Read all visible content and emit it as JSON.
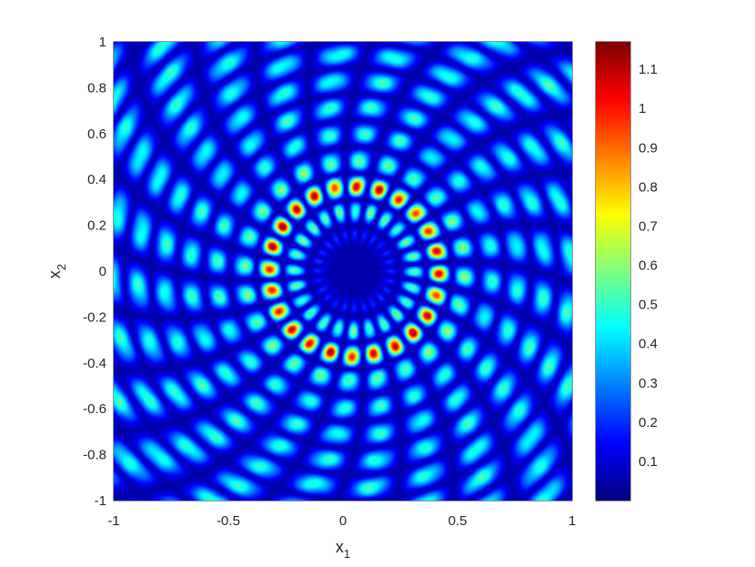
{
  "chart_data": {
    "type": "heatmap",
    "title": "",
    "xlabel": "x",
    "xlabel_sub": "1",
    "ylabel": "x",
    "ylabel_sub": "2",
    "xlim": [
      -1,
      1
    ],
    "ylim": [
      -1,
      1
    ],
    "x_ticks": [
      -1,
      -0.5,
      0,
      0.5,
      1
    ],
    "x_tick_labels": [
      "-1",
      "-0.5",
      "0",
      "0.5",
      "1"
    ],
    "y_ticks": [
      -1,
      -0.8,
      -0.6,
      -0.4,
      -0.2,
      0,
      0.2,
      0.4,
      0.6,
      0.8,
      1
    ],
    "y_tick_labels": [
      "-1",
      "-0.8",
      "-0.6",
      "-0.4",
      "-0.2",
      "0",
      "0.2",
      "0.4",
      "0.6",
      "0.8",
      "1"
    ],
    "colormap": "jet",
    "colorbar": {
      "clim": [
        0,
        1.17
      ],
      "ticks": [
        0.1,
        0.2,
        0.3,
        0.4,
        0.5,
        0.6,
        0.7,
        0.8,
        0.9,
        1,
        1.1
      ],
      "tick_labels": [
        "0.1",
        "0.2",
        "0.3",
        "0.4",
        "0.5",
        "0.6",
        "0.7",
        "0.8",
        "0.9",
        "1",
        "1.1"
      ],
      "placement": "right"
    },
    "field": {
      "pattern": "radial interference rings with dark circular core",
      "center": [
        0.05,
        0
      ],
      "dark_core_radius": 0.17,
      "first_ring_radius": 0.37,
      "first_ring_lobes": 24,
      "first_ring_peak": 1.15,
      "outer_level": 0.5,
      "grid": false
    }
  }
}
